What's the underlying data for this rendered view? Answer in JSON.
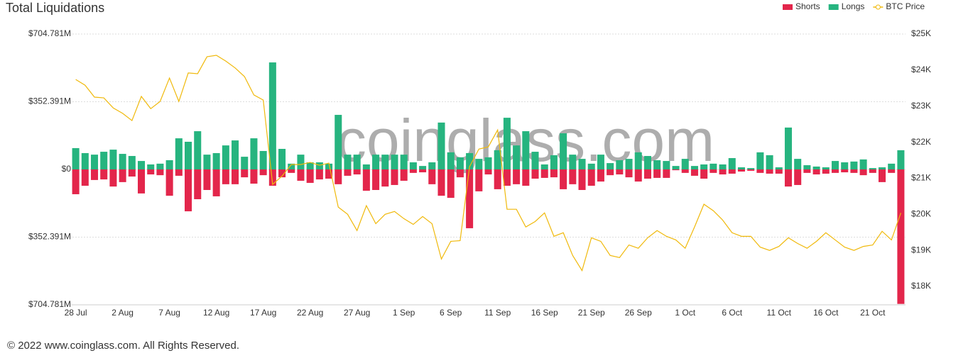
{
  "chart_data": {
    "type": "bar-line",
    "title": "Total Liquidations",
    "watermark": "coinglass.com",
    "footer": "© 2022 www.coinglass.com. All Rights Reserved.",
    "categories": [
      "28 Jul",
      null,
      null,
      null,
      null,
      "2 Aug",
      null,
      null,
      null,
      null,
      "7 Aug",
      null,
      null,
      null,
      null,
      "12 Aug",
      null,
      null,
      null,
      null,
      "17 Aug",
      null,
      null,
      null,
      null,
      "22 Aug",
      null,
      null,
      null,
      null,
      "27 Aug",
      null,
      null,
      null,
      null,
      "1 Sep",
      null,
      null,
      null,
      null,
      "6 Sep",
      null,
      null,
      null,
      null,
      "11 Sep",
      null,
      null,
      null,
      null,
      "16 Sep",
      null,
      null,
      null,
      null,
      "21 Sep",
      null,
      null,
      null,
      null,
      "26 Sep",
      null,
      null,
      null,
      null,
      "1 Oct",
      null,
      null,
      null,
      null,
      "6 Oct",
      null,
      null,
      null,
      null,
      "11 Oct",
      null,
      null,
      null,
      null,
      "16 Oct",
      null,
      null,
      null,
      null,
      "21 Oct",
      null,
      null,
      null
    ],
    "ylim": [
      -704.781,
      704.781
    ],
    "yticks": [
      {
        "value": 704.781,
        "label": "$704.781M"
      },
      {
        "value": 352.391,
        "label": "$352.391M"
      },
      {
        "value": 0,
        "label": "$0"
      },
      {
        "value": -352.391,
        "label": "$352.391M"
      },
      {
        "value": -704.781,
        "label": "$704.781M"
      }
    ],
    "y2lim": [
      17490,
      25000
    ],
    "y2ticks": [
      {
        "value": 25000,
        "label": "$25K"
      },
      {
        "value": 24000,
        "label": "$24K"
      },
      {
        "value": 23000,
        "label": "$23K"
      },
      {
        "value": 22000,
        "label": "$22K"
      },
      {
        "value": 21000,
        "label": "$21K"
      },
      {
        "value": 20000,
        "label": "$20K"
      },
      {
        "value": 19000,
        "label": "$19K"
      },
      {
        "value": 18000,
        "label": "$18K"
      }
    ],
    "grid": true,
    "legend": "top-right",
    "series": [
      {
        "name": "Shorts",
        "color": "#e3264b",
        "kind": "bar",
        "values": [
          -129,
          -85,
          -55,
          -52,
          -89,
          -66,
          -37,
          -125,
          -26,
          -30,
          -137,
          -33,
          -218,
          -155,
          -107,
          -140,
          -77,
          -77,
          -41,
          -74,
          -30,
          -85,
          -41,
          -18,
          -59,
          -70,
          -52,
          -48,
          -77,
          -33,
          -26,
          -111,
          -107,
          -89,
          -81,
          -59,
          -18,
          -15,
          -77,
          -137,
          -148,
          -41,
          -306,
          -114,
          -26,
          -103,
          -85,
          -77,
          -85,
          -48,
          -44,
          -41,
          -103,
          -77,
          -107,
          -85,
          -63,
          -30,
          -26,
          -41,
          -63,
          -48,
          -44,
          -44,
          -4,
          -18,
          -33,
          -48,
          -18,
          -26,
          -22,
          -11,
          -7,
          -18,
          -22,
          -22,
          -89,
          -81,
          -18,
          -26,
          -22,
          -18,
          -15,
          -18,
          -30,
          -18,
          -66,
          -18,
          -700
        ]
      },
      {
        "name": "Longs",
        "color": "#26b47f",
        "kind": "bar",
        "values": [
          111,
          85,
          77,
          92,
          103,
          81,
          70,
          44,
          26,
          30,
          48,
          162,
          144,
          199,
          77,
          85,
          125,
          151,
          66,
          162,
          96,
          557,
          107,
          30,
          77,
          37,
          37,
          30,
          284,
          77,
          77,
          26,
          77,
          77,
          77,
          77,
          37,
          18,
          37,
          244,
          89,
          63,
          85,
          55,
          63,
          100,
          269,
          125,
          199,
          92,
          26,
          74,
          188,
          77,
          55,
          30,
          77,
          33,
          48,
          55,
          89,
          70,
          48,
          44,
          18,
          55,
          18,
          26,
          30,
          26,
          59,
          11,
          7,
          89,
          74,
          11,
          218,
          55,
          22,
          15,
          11,
          44,
          37,
          41,
          52,
          7,
          11,
          30,
          100
        ]
      },
      {
        "name": "BTC Price",
        "color": "#f0b90b",
        "kind": "line",
        "axis": "y2",
        "values": [
          23740,
          23580,
          23250,
          23230,
          22950,
          22800,
          22600,
          23270,
          22930,
          23130,
          23780,
          23130,
          23920,
          23900,
          24370,
          24410,
          24250,
          24060,
          23820,
          23310,
          23170,
          20830,
          21060,
          21380,
          21380,
          21440,
          21360,
          21420,
          20200,
          20000,
          19550,
          20240,
          19740,
          20000,
          20080,
          19880,
          19720,
          19940,
          19740,
          18760,
          19250,
          19270,
          21320,
          21810,
          21870,
          22340,
          20140,
          20140,
          19650,
          19800,
          20040,
          19390,
          19490,
          18860,
          18440,
          19350,
          19250,
          18860,
          18800,
          19150,
          19060,
          19350,
          19550,
          19390,
          19290,
          19060,
          19650,
          20280,
          20100,
          19840,
          19490,
          19390,
          19390,
          19090,
          19000,
          19110,
          19350,
          19190,
          19060,
          19250,
          19490,
          19290,
          19090,
          19000,
          19110,
          19150,
          19530,
          19290,
          20040
        ]
      }
    ]
  }
}
